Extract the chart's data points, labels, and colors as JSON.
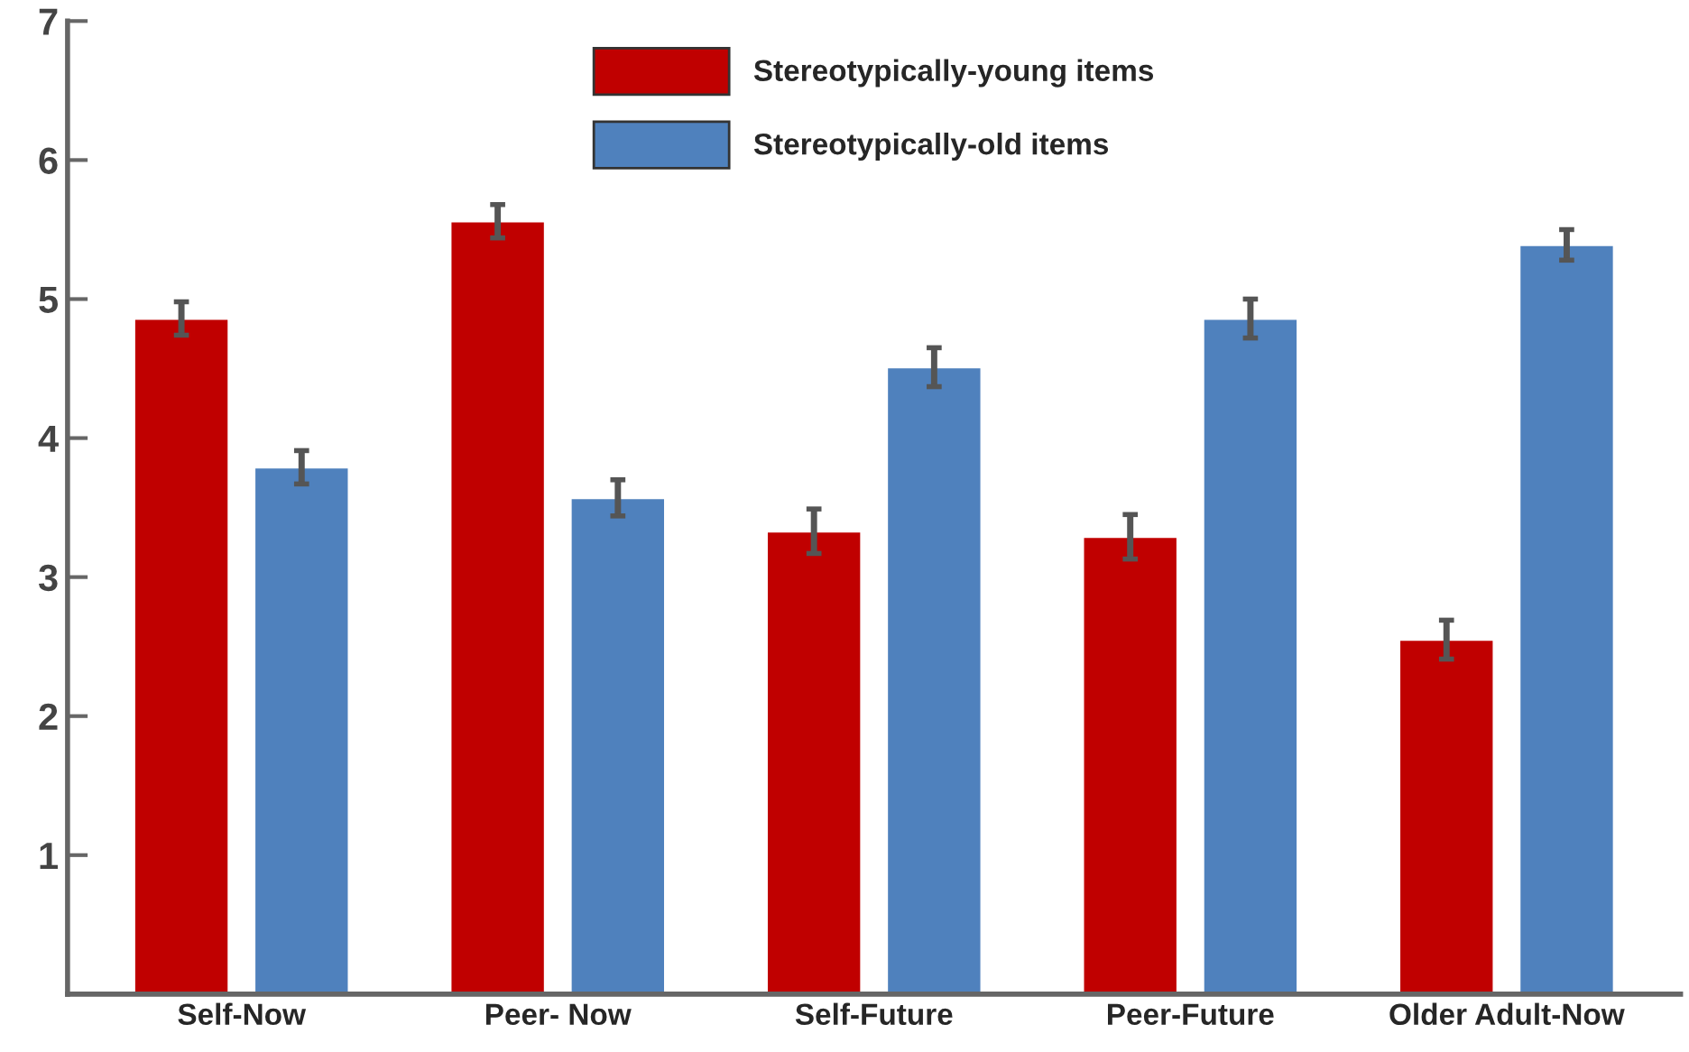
{
  "chart_data": {
    "type": "bar",
    "categories": [
      "Self-Now",
      "Peer- Now",
      "Self-Future",
      "Peer-Future",
      "Older Adult-Now"
    ],
    "series": [
      {
        "name": "Stereotypically-young items",
        "color": "#c00000",
        "values": [
          4.86,
          5.56,
          3.33,
          3.29,
          2.55
        ],
        "errors": [
          0.12,
          0.12,
          0.16,
          0.16,
          0.14
        ]
      },
      {
        "name": "Stereotypically-old items",
        "color": "#4f81bd",
        "values": [
          3.79,
          3.57,
          4.51,
          4.86,
          5.39
        ],
        "errors": [
          0.12,
          0.13,
          0.14,
          0.14,
          0.11
        ]
      }
    ],
    "ylim": [
      0,
      7
    ],
    "yticks": [
      1,
      2,
      3,
      4,
      5,
      6,
      7
    ],
    "grid": false,
    "legend": "top"
  }
}
